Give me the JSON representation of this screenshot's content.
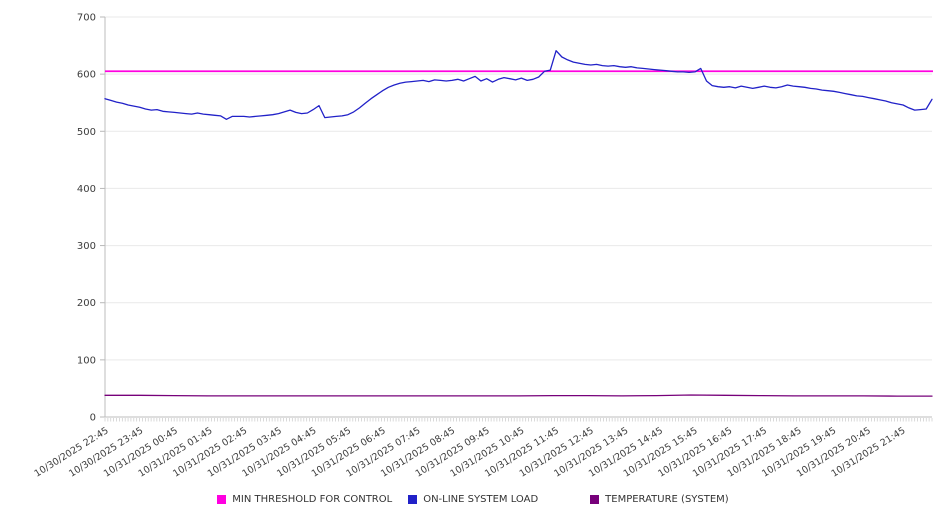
{
  "chart_data": {
    "type": "line",
    "title": "",
    "xlabel": "",
    "ylabel": "",
    "ylim": [
      0,
      700
    ],
    "yticks": [
      0,
      100,
      200,
      300,
      400,
      500,
      600,
      700
    ],
    "grid": "horizontal",
    "legend_position": "bottom",
    "x_tick_labels": [
      "10/30/2025 22:45",
      "10/30/2025 23:45",
      "10/31/2025 00:45",
      "10/31/2025 01:45",
      "10/31/2025 02:45",
      "10/31/2025 03:45",
      "10/31/2025 04:45",
      "10/31/2025 05:45",
      "10/31/2025 06:45",
      "10/31/2025 07:45",
      "10/31/2025 08:45",
      "10/31/2025 09:45",
      "10/31/2025 10:45",
      "10/31/2025 11:45",
      "10/31/2025 12:45",
      "10/31/2025 13:45",
      "10/31/2025 14:45",
      "10/31/2025 15:45",
      "10/31/2025 16:45",
      "10/31/2025 17:45",
      "10/31/2025 18:45",
      "10/31/2025 19:45",
      "10/31/2025 20:45",
      "10/31/2025 21:45"
    ],
    "series": [
      {
        "name": "MIN THRESHOLD FOR CONTROL",
        "color": "#ff00e0",
        "style": "constant",
        "value": 605
      },
      {
        "name": "ON-LINE SYSTEM LOAD",
        "color": "#2121c8",
        "style": "line",
        "values": [
          557,
          554,
          551,
          549,
          546,
          544,
          542,
          539,
          537,
          538,
          535,
          534,
          533,
          532,
          531,
          530,
          532,
          530,
          529,
          528,
          527,
          521,
          526,
          526,
          526,
          525,
          526,
          527,
          528,
          529,
          531,
          534,
          537,
          533,
          531,
          532,
          538,
          545,
          524,
          525,
          526,
          527,
          529,
          534,
          541,
          549,
          557,
          564,
          571,
          577,
          581,
          584,
          586,
          587,
          588,
          589,
          587,
          590,
          589,
          588,
          589,
          591,
          588,
          592,
          596,
          588,
          592,
          586,
          591,
          594,
          592,
          590,
          593,
          589,
          591,
          595,
          605,
          607,
          641,
          630,
          625,
          621,
          619,
          617,
          616,
          617,
          615,
          614,
          615,
          613,
          612,
          613,
          611,
          610,
          609,
          608,
          607,
          606,
          605,
          604,
          604,
          603,
          604,
          610,
          588,
          580,
          578,
          577,
          578,
          576,
          579,
          577,
          575,
          577,
          579,
          577,
          576,
          578,
          581,
          579,
          578,
          577,
          575,
          574,
          572,
          571,
          570,
          568,
          566,
          564,
          562,
          561,
          559,
          557,
          555,
          553,
          550,
          548,
          546,
          541,
          537,
          538,
          539,
          556
        ]
      },
      {
        "name": "TEMPERATURE (SYSTEM)",
        "color": "#77007a",
        "style": "line",
        "values": [
          38,
          38,
          37.5,
          37,
          37,
          37,
          37,
          37,
          37,
          37,
          37,
          37,
          37,
          37.5,
          37.5,
          37,
          37.5,
          38.5,
          38,
          37.5,
          37,
          37,
          37,
          36.5,
          36.5
        ]
      }
    ]
  }
}
